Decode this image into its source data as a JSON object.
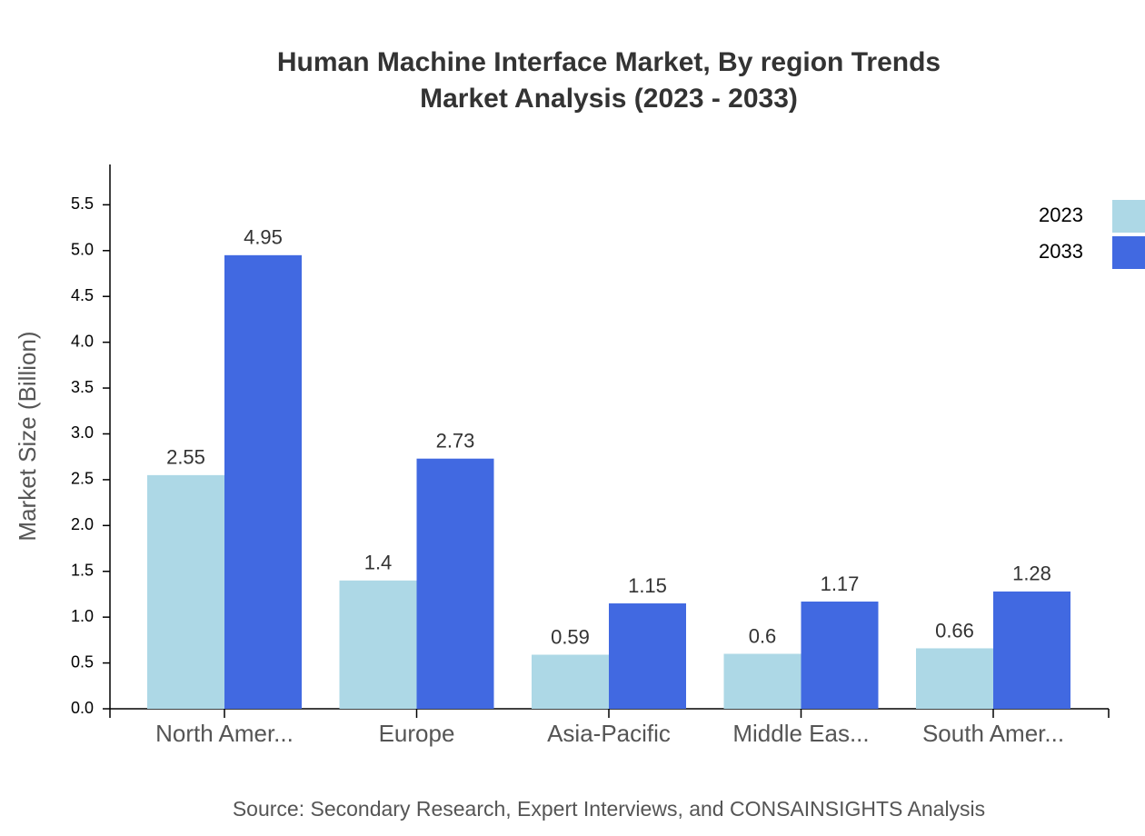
{
  "chart_data": {
    "type": "bar",
    "title": [
      "Human Machine Interface Market, By region Trends",
      "Market Analysis (2023 - 2033)"
    ],
    "y_label": "Market Size (Billion)",
    "source": "Source: Secondary Research, Expert Interviews, and CONSAINSIGHTS Analysis",
    "categories": [
      "North Amer...",
      "Europe",
      "Asia-Pacific",
      "Middle Eas...",
      "South Amer..."
    ],
    "series": [
      {
        "name": "2023",
        "color": "#add8e6",
        "values": [
          2.55,
          1.4,
          0.59,
          0.6,
          0.66
        ]
      },
      {
        "name": "2033",
        "color": "#4169e1",
        "values": [
          4.95,
          2.73,
          1.15,
          1.17,
          1.28
        ]
      }
    ],
    "ylim": [
      0,
      5.94
    ],
    "yticks": [
      {
        "value": 0,
        "label": "0.0"
      },
      0.5,
      {
        "value": 1,
        "label": "1.0"
      },
      1.5,
      {
        "value": 2,
        "label": "2.0"
      },
      2.5,
      {
        "value": 3,
        "label": "3.0"
      },
      3.5,
      {
        "value": 4,
        "label": "4.0"
      },
      4.5,
      {
        "value": 5,
        "label": "5.0"
      },
      5.5
    ],
    "legend": "top-right"
  }
}
